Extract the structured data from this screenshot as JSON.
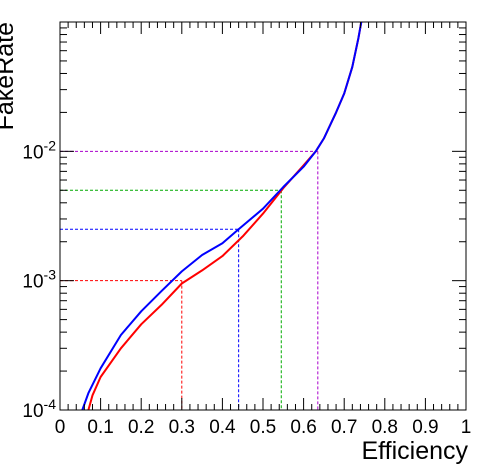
{
  "chart_data": {
    "type": "line",
    "xlabel": "Efficiency",
    "ylabel": "FakeRate",
    "xlim": [
      0,
      1
    ],
    "ylim": [
      0.0001,
      0.1
    ],
    "yscale": "log",
    "grid": false,
    "x_ticks": [
      "0",
      "0.1",
      "0.2",
      "0.3",
      "0.4",
      "0.5",
      "0.6",
      "0.7",
      "0.8",
      "0.9",
      "1"
    ],
    "y_ticks": [
      {
        "base": "10",
        "exp": "-4"
      },
      {
        "base": "10",
        "exp": "-3"
      },
      {
        "base": "10",
        "exp": "-2"
      }
    ],
    "series": [
      {
        "color": "#ff0000",
        "points": [
          [
            0.07,
            0.0001
          ],
          [
            0.08,
            0.00013
          ],
          [
            0.1,
            0.00018
          ],
          [
            0.15,
            0.0003
          ],
          [
            0.2,
            0.00046
          ],
          [
            0.25,
            0.00065
          ],
          [
            0.3,
            0.00095
          ],
          [
            0.35,
            0.0012
          ],
          [
            0.4,
            0.00155
          ],
          [
            0.45,
            0.0022
          ],
          [
            0.5,
            0.0033
          ],
          [
            0.55,
            0.0052
          ],
          [
            0.6,
            0.0078
          ],
          [
            0.63,
            0.01
          ],
          [
            0.65,
            0.0126
          ],
          [
            0.68,
            0.02
          ],
          [
            0.7,
            0.028
          ],
          [
            0.72,
            0.045
          ],
          [
            0.735,
            0.075
          ],
          [
            0.742,
            0.1
          ]
        ]
      },
      {
        "color": "#0000ff",
        "points": [
          [
            0.055,
            0.0001
          ],
          [
            0.07,
            0.000135
          ],
          [
            0.1,
            0.00021
          ],
          [
            0.15,
            0.00038
          ],
          [
            0.2,
            0.00058
          ],
          [
            0.25,
            0.00083
          ],
          [
            0.3,
            0.00118
          ],
          [
            0.35,
            0.00158
          ],
          [
            0.4,
            0.00195
          ],
          [
            0.44,
            0.0025
          ],
          [
            0.5,
            0.0036
          ],
          [
            0.55,
            0.0053
          ],
          [
            0.6,
            0.0076
          ],
          [
            0.63,
            0.01
          ],
          [
            0.65,
            0.0126
          ],
          [
            0.68,
            0.02
          ],
          [
            0.7,
            0.028
          ],
          [
            0.72,
            0.045
          ],
          [
            0.735,
            0.075
          ],
          [
            0.742,
            0.1
          ]
        ]
      }
    ],
    "reference_lines": [
      {
        "color": "#ff0000",
        "y": 0.001,
        "x": 0.3
      },
      {
        "color": "#0000ff",
        "y": 0.0025,
        "x": 0.44
      },
      {
        "color": "#00aa00",
        "y": 0.005,
        "x": 0.545
      },
      {
        "color": "#aa00cc",
        "y": 0.01,
        "x": 0.635
      }
    ]
  }
}
